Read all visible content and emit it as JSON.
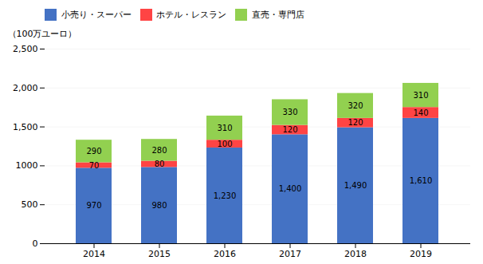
{
  "chart_data": {
    "type": "bar",
    "stacked": true,
    "ylabel": "（100万ユーロ）",
    "categories": [
      "2014",
      "2015",
      "2016",
      "2017",
      "2018",
      "2019"
    ],
    "series": [
      {
        "name": "小売り・スーパー",
        "color": "#4472C4",
        "values": [
          970,
          980,
          1230,
          1400,
          1490,
          1610
        ],
        "value_labels": [
          "970",
          "980",
          "1,230",
          "1,400",
          "1,490",
          "1,610"
        ]
      },
      {
        "name": "ホテル・レスラン",
        "color": "#FF4444",
        "values": [
          70,
          80,
          100,
          120,
          120,
          140
        ]
      },
      {
        "name": "直売・専門店",
        "color": "#92D050",
        "values": [
          290,
          280,
          310,
          330,
          320,
          310
        ]
      }
    ],
    "ylim": [
      0,
      2500
    ],
    "yticks": [
      0,
      500,
      1000,
      {
        "value": 1500,
        "label": "1,500"
      },
      {
        "value": 2000,
        "label": "2,000"
      },
      {
        "value": 2500,
        "label": "2,500"
      }
    ],
    "grid": true,
    "data_labels": true,
    "legend": "upper left"
  }
}
